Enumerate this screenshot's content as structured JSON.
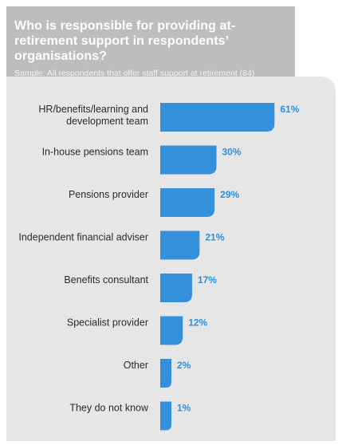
{
  "header": {
    "title": "Who is responsible for providing at-retirement support in respondents’ organisations?",
    "subtitle": "Sample: All respondents that offer staff support at retirement (84)"
  },
  "colors": {
    "bar": "#3590dc",
    "value_label": "#2f8fd8",
    "header_bg": "#bdbdbd",
    "panel_bg": "#e6e6e6"
  },
  "chart_data": {
    "type": "bar",
    "orientation": "horizontal",
    "categories": [
      [
        "HR/benefits/learning and",
        "development team"
      ],
      [
        "In-house pensions team"
      ],
      [
        "Pensions provider"
      ],
      [
        "Independent financial adviser"
      ],
      [
        "Benefits consultant"
      ],
      [
        "Specialist provider"
      ],
      [
        "Other"
      ],
      [
        "They do not know"
      ]
    ],
    "values": [
      61,
      30,
      29,
      21,
      17,
      12,
      2,
      1
    ],
    "value_labels": [
      "61%",
      "30%",
      "29%",
      "21%",
      "17%",
      "12%",
      "2%",
      "1%"
    ],
    "unit": "%",
    "grid": false,
    "legend": "none"
  }
}
